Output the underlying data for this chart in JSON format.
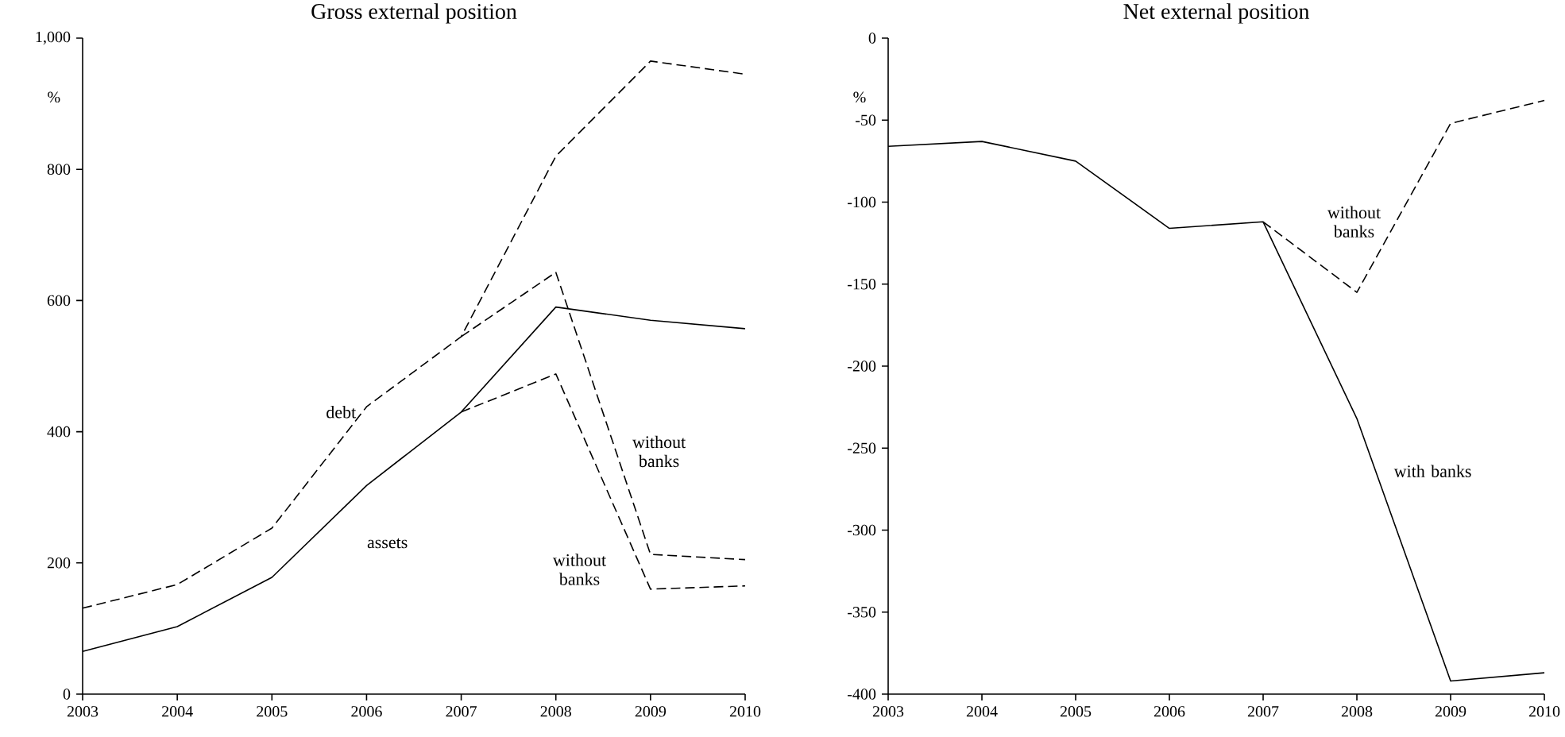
{
  "chart_data": [
    {
      "type": "line",
      "title": "Gross external position",
      "ylabel": "%",
      "x": [
        2003,
        2004,
        2005,
        2006,
        2007,
        2008,
        2009,
        2010
      ],
      "series": [
        {
          "color": "#000000",
          "line_style": "dashed",
          "values": [
            131,
            167,
            253,
            438,
            545,
            820,
            965,
            945
          ]
        },
        {
          "color": "#000000",
          "line_style": "dashed",
          "values": [
            null,
            null,
            null,
            null,
            545,
            643,
            213,
            205
          ]
        },
        {
          "color": "#000000",
          "line_style": "solid",
          "values": [
            65,
            103,
            178,
            318,
            430,
            590,
            570,
            557
          ]
        },
        {
          "color": "#000000",
          "line_style": "dashed",
          "values": [
            null,
            null,
            null,
            null,
            430,
            488,
            160,
            165
          ]
        }
      ],
      "xlim": [
        2003,
        2010
      ],
      "xticks": [
        2003,
        2004,
        2005,
        2006,
        2007,
        2008,
        2009,
        2010
      ],
      "ylim": [
        0,
        1000
      ],
      "yticks": [
        0,
        200,
        400,
        600,
        800,
        {
          "value": 1000,
          "label": "1,000"
        }
      ],
      "annotations": [
        "debt",
        "assets",
        "without banks",
        "without banks"
      ]
    },
    {
      "type": "line",
      "title": "Net external position",
      "ylabel": "%",
      "x": [
        2003,
        2004,
        2005,
        2006,
        2007,
        2008,
        2009,
        2010
      ],
      "series": [
        {
          "color": "#000000",
          "line_style": "solid",
          "values": [
            -66,
            -63,
            -75,
            -116,
            -112,
            -232,
            -392,
            -387
          ]
        },
        {
          "color": "#000000",
          "line_style": "dashed",
          "values": [
            null,
            null,
            null,
            null,
            -112,
            -155,
            -52,
            -38
          ]
        }
      ],
      "xlim": [
        2003,
        2010
      ],
      "xticks": [
        2003,
        2004,
        2005,
        2006,
        2007,
        2008,
        2009,
        2010
      ],
      "ylim": [
        -400,
        0
      ],
      "yticks": [
        -400,
        -350,
        -300,
        -250,
        -200,
        -150,
        -100,
        -50,
        0
      ],
      "annotations": [
        "without banks",
        "with banks"
      ]
    }
  ]
}
